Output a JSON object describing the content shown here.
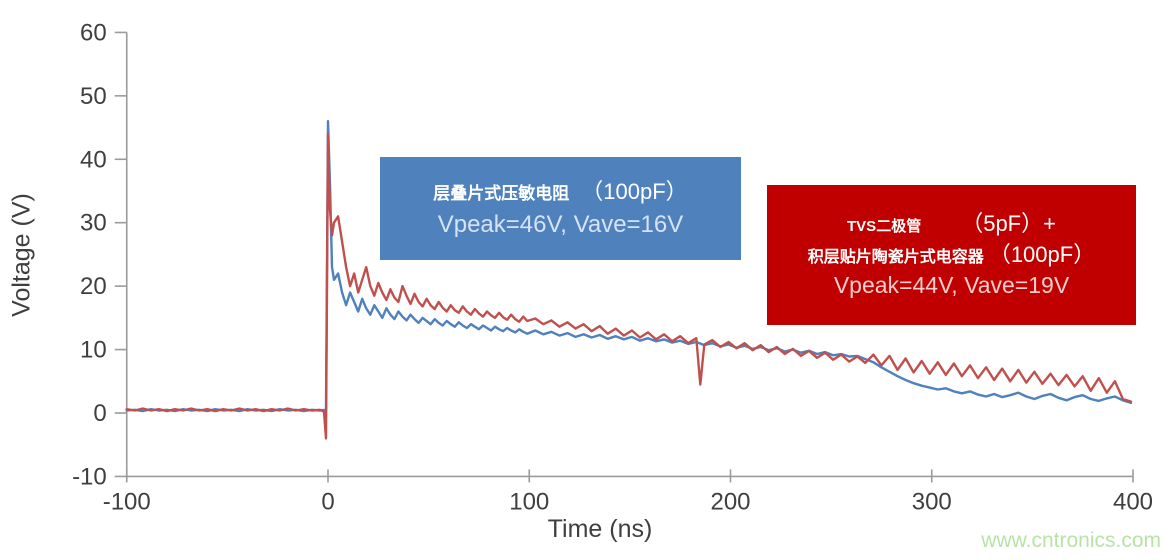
{
  "page": {
    "watermark": "www.cntronics.com"
  },
  "chart_data": {
    "type": "line",
    "title": "",
    "xlabel": "Time (ns)",
    "ylabel": "Voltage (V)",
    "xlim": [
      -100,
      400
    ],
    "ylim": [
      -10,
      60
    ],
    "x_ticks": [
      -100,
      0,
      100,
      200,
      300,
      400
    ],
    "y_ticks": [
      -10,
      0,
      10,
      20,
      30,
      40,
      50,
      60
    ],
    "grid": false,
    "legend_position": "none",
    "series": [
      {
        "id": "varistor",
        "name": "层叠片式压敏电阻（100pF）",
        "color": "#4f81bd",
        "vpeak_v": 46,
        "vave_v": 16,
        "points": [
          [
            -100,
            0.4
          ],
          [
            -96,
            0.5
          ],
          [
            -92,
            0.3
          ],
          [
            -88,
            0.6
          ],
          [
            -84,
            0.4
          ],
          [
            -80,
            0.5
          ],
          [
            -76,
            0.3
          ],
          [
            -72,
            0.6
          ],
          [
            -68,
            0.4
          ],
          [
            -64,
            0.5
          ],
          [
            -60,
            0.3
          ],
          [
            -56,
            0.6
          ],
          [
            -52,
            0.4
          ],
          [
            -48,
            0.5
          ],
          [
            -44,
            0.3
          ],
          [
            -40,
            0.6
          ],
          [
            -36,
            0.4
          ],
          [
            -32,
            0.5
          ],
          [
            -28,
            0.3
          ],
          [
            -24,
            0.6
          ],
          [
            -20,
            0.4
          ],
          [
            -16,
            0.5
          ],
          [
            -12,
            0.3
          ],
          [
            -8,
            0.5
          ],
          [
            -4,
            0.4
          ],
          [
            -1,
            0.5
          ],
          [
            0,
            46
          ],
          [
            1,
            36
          ],
          [
            2,
            23
          ],
          [
            3,
            21
          ],
          [
            5,
            22
          ],
          [
            7,
            19
          ],
          [
            9,
            17
          ],
          [
            11,
            19
          ],
          [
            13,
            17.5
          ],
          [
            15,
            16
          ],
          [
            17,
            18
          ],
          [
            19,
            16.5
          ],
          [
            21,
            15.5
          ],
          [
            23,
            17
          ],
          [
            25,
            16
          ],
          [
            27,
            15
          ],
          [
            29,
            16.5
          ],
          [
            31,
            15.5
          ],
          [
            33,
            14.8
          ],
          [
            35,
            16
          ],
          [
            37,
            15.2
          ],
          [
            39,
            14.6
          ],
          [
            41,
            15.5
          ],
          [
            43,
            14.8
          ],
          [
            45,
            14.2
          ],
          [
            47,
            15
          ],
          [
            49,
            14.5
          ],
          [
            51,
            14
          ],
          [
            53,
            14.8
          ],
          [
            55,
            14.2
          ],
          [
            57,
            13.8
          ],
          [
            59,
            14.5
          ],
          [
            61,
            14
          ],
          [
            63,
            13.6
          ],
          [
            65,
            14.3
          ],
          [
            67,
            13.8
          ],
          [
            69,
            13.4
          ],
          [
            71,
            14
          ],
          [
            73,
            13.6
          ],
          [
            75,
            13.2
          ],
          [
            77,
            13.8
          ],
          [
            79,
            13.4
          ],
          [
            81,
            13
          ],
          [
            83,
            13.6
          ],
          [
            85,
            13.2
          ],
          [
            87,
            12.9
          ],
          [
            89,
            13.4
          ],
          [
            91,
            13
          ],
          [
            93,
            12.7
          ],
          [
            95,
            13.2
          ],
          [
            97,
            12.8
          ],
          [
            99,
            12.5
          ],
          [
            103,
            13
          ],
          [
            107,
            12.4
          ],
          [
            111,
            12.8
          ],
          [
            115,
            12.2
          ],
          [
            119,
            12.6
          ],
          [
            123,
            12
          ],
          [
            127,
            12.4
          ],
          [
            131,
            11.9
          ],
          [
            135,
            12.3
          ],
          [
            139,
            11.7
          ],
          [
            143,
            12.1
          ],
          [
            147,
            11.6
          ],
          [
            151,
            12
          ],
          [
            155,
            11.4
          ],
          [
            159,
            11.8
          ],
          [
            163,
            11.3
          ],
          [
            167,
            11.6
          ],
          [
            171,
            11.1
          ],
          [
            175,
            11.4
          ],
          [
            179,
            10.9
          ],
          [
            183,
            11.2
          ],
          [
            187,
            10.7
          ],
          [
            191,
            11
          ],
          [
            195,
            10.5
          ],
          [
            199,
            10.8
          ],
          [
            203,
            10.3
          ],
          [
            207,
            10.6
          ],
          [
            211,
            10.1
          ],
          [
            215,
            10.4
          ],
          [
            219,
            9.9
          ],
          [
            223,
            10.2
          ],
          [
            227,
            9.7
          ],
          [
            231,
            10
          ],
          [
            235,
            9.5
          ],
          [
            239,
            9.8
          ],
          [
            243,
            9.3
          ],
          [
            247,
            9.6
          ],
          [
            251,
            9.1
          ],
          [
            255,
            9.3
          ],
          [
            259,
            8.9
          ],
          [
            263,
            9
          ],
          [
            267,
            8.5
          ],
          [
            271,
            8
          ],
          [
            275,
            7.2
          ],
          [
            279,
            6.5
          ],
          [
            283,
            5.8
          ],
          [
            287,
            5.2
          ],
          [
            291,
            4.7
          ],
          [
            295,
            4.3
          ],
          [
            299,
            4
          ],
          [
            303,
            3.7
          ],
          [
            307,
            3.9
          ],
          [
            311,
            3.4
          ],
          [
            315,
            3.1
          ],
          [
            319,
            3.4
          ],
          [
            323,
            2.9
          ],
          [
            327,
            2.6
          ],
          [
            331,
            3
          ],
          [
            335,
            2.5
          ],
          [
            339,
            2.8
          ],
          [
            343,
            3.2
          ],
          [
            347,
            2.6
          ],
          [
            351,
            2.2
          ],
          [
            355,
            2.7
          ],
          [
            359,
            3
          ],
          [
            363,
            2.4
          ],
          [
            367,
            2
          ],
          [
            371,
            2.5
          ],
          [
            375,
            2.8
          ],
          [
            379,
            2.2
          ],
          [
            383,
            1.9
          ],
          [
            387,
            2.3
          ],
          [
            391,
            2.6
          ],
          [
            395,
            2
          ],
          [
            399,
            1.6
          ]
        ]
      },
      {
        "id": "tvs-mlcc",
        "name": "TVS二极管（5pF）+ 积层贴片陶瓷片式电容器（100pF）",
        "color": "#c0504d",
        "vpeak_v": 44,
        "vave_v": 19,
        "points": [
          [
            -100,
            0.6
          ],
          [
            -96,
            0.4
          ],
          [
            -92,
            0.7
          ],
          [
            -88,
            0.4
          ],
          [
            -84,
            0.6
          ],
          [
            -80,
            0.3
          ],
          [
            -76,
            0.6
          ],
          [
            -72,
            0.4
          ],
          [
            -68,
            0.7
          ],
          [
            -64,
            0.4
          ],
          [
            -60,
            0.6
          ],
          [
            -56,
            0.3
          ],
          [
            -52,
            0.6
          ],
          [
            -48,
            0.4
          ],
          [
            -44,
            0.7
          ],
          [
            -40,
            0.4
          ],
          [
            -36,
            0.6
          ],
          [
            -32,
            0.3
          ],
          [
            -28,
            0.6
          ],
          [
            -24,
            0.4
          ],
          [
            -20,
            0.7
          ],
          [
            -16,
            0.4
          ],
          [
            -12,
            0.6
          ],
          [
            -8,
            0.4
          ],
          [
            -4,
            0.5
          ],
          [
            -2,
            0.2
          ],
          [
            -1,
            -4
          ],
          [
            0,
            44
          ],
          [
            1,
            32
          ],
          [
            2,
            28
          ],
          [
            3,
            30
          ],
          [
            5,
            31
          ],
          [
            7,
            27
          ],
          [
            9,
            23
          ],
          [
            11,
            20
          ],
          [
            13,
            22
          ],
          [
            15,
            19
          ],
          [
            17,
            21
          ],
          [
            19,
            23
          ],
          [
            21,
            20
          ],
          [
            23,
            18.5
          ],
          [
            25,
            20.5
          ],
          [
            27,
            19
          ],
          [
            29,
            17.8
          ],
          [
            31,
            19.5
          ],
          [
            33,
            18.2
          ],
          [
            35,
            17.5
          ],
          [
            37,
            20
          ],
          [
            39,
            18.5
          ],
          [
            41,
            17.2
          ],
          [
            43,
            18.8
          ],
          [
            45,
            17.5
          ],
          [
            47,
            16.8
          ],
          [
            49,
            18
          ],
          [
            51,
            17
          ],
          [
            53,
            16.4
          ],
          [
            55,
            17.5
          ],
          [
            57,
            16.6
          ],
          [
            59,
            16
          ],
          [
            61,
            17
          ],
          [
            63,
            16.2
          ],
          [
            65,
            15.8
          ],
          [
            67,
            16.8
          ],
          [
            69,
            16
          ],
          [
            71,
            15.5
          ],
          [
            73,
            16.4
          ],
          [
            75,
            15.7
          ],
          [
            77,
            15.2
          ],
          [
            79,
            16
          ],
          [
            81,
            15.4
          ],
          [
            83,
            15
          ],
          [
            85,
            15.8
          ],
          [
            87,
            15.1
          ],
          [
            89,
            14.7
          ],
          [
            91,
            15.5
          ],
          [
            93,
            14.8
          ],
          [
            95,
            14.4
          ],
          [
            97,
            15.2
          ],
          [
            99,
            14.5
          ],
          [
            103,
            14.9
          ],
          [
            107,
            14
          ],
          [
            111,
            14.6
          ],
          [
            115,
            13.6
          ],
          [
            119,
            14.3
          ],
          [
            123,
            13.3
          ],
          [
            127,
            14
          ],
          [
            131,
            12.9
          ],
          [
            135,
            13.7
          ],
          [
            139,
            12.5
          ],
          [
            143,
            13.3
          ],
          [
            147,
            12.2
          ],
          [
            151,
            13
          ],
          [
            155,
            11.9
          ],
          [
            159,
            12.7
          ],
          [
            163,
            11.6
          ],
          [
            167,
            12.4
          ],
          [
            171,
            11.3
          ],
          [
            175,
            12.1
          ],
          [
            179,
            11
          ],
          [
            183,
            11.8
          ],
          [
            185,
            4.5
          ],
          [
            187,
            10.8
          ],
          [
            191,
            11.5
          ],
          [
            195,
            10.4
          ],
          [
            199,
            11.2
          ],
          [
            203,
            10.2
          ],
          [
            207,
            11
          ],
          [
            211,
            9.9
          ],
          [
            215,
            10.7
          ],
          [
            219,
            9.6
          ],
          [
            223,
            10.4
          ],
          [
            227,
            9.3
          ],
          [
            231,
            10.1
          ],
          [
            235,
            9
          ],
          [
            239,
            9.8
          ],
          [
            243,
            8.7
          ],
          [
            247,
            9.5
          ],
          [
            251,
            8.4
          ],
          [
            255,
            9.2
          ],
          [
            259,
            8.1
          ],
          [
            263,
            8.9
          ],
          [
            267,
            7.9
          ],
          [
            271,
            9.2
          ],
          [
            275,
            7.5
          ],
          [
            279,
            9
          ],
          [
            283,
            6.8
          ],
          [
            287,
            8.6
          ],
          [
            291,
            6.4
          ],
          [
            295,
            8.2
          ],
          [
            299,
            6.2
          ],
          [
            303,
            8
          ],
          [
            307,
            6
          ],
          [
            311,
            7.8
          ],
          [
            315,
            5.8
          ],
          [
            319,
            7.5
          ],
          [
            323,
            5.5
          ],
          [
            327,
            7.2
          ],
          [
            331,
            5.2
          ],
          [
            335,
            7
          ],
          [
            339,
            5
          ],
          [
            343,
            6.8
          ],
          [
            347,
            4.8
          ],
          [
            351,
            6.5
          ],
          [
            355,
            4.6
          ],
          [
            359,
            6.2
          ],
          [
            363,
            4.4
          ],
          [
            367,
            6
          ],
          [
            371,
            4.2
          ],
          [
            375,
            5.8
          ],
          [
            379,
            3.5
          ],
          [
            383,
            5.5
          ],
          [
            387,
            3.2
          ],
          [
            391,
            5
          ],
          [
            395,
            2.2
          ],
          [
            399,
            1.8
          ]
        ]
      }
    ],
    "annotations": [
      {
        "id": "varistor-box",
        "bg": "#4f81bd",
        "line1_name": "层叠片式压敏电阻",
        "line1_cap": "（100pF）",
        "line2": "Vpeak=46V, Vave=16V"
      },
      {
        "id": "tvs-box",
        "bg": "#c00000",
        "line1_name": "TVS二极管",
        "line1_cap": "（5pF）+",
        "line2_name": "积层贴片陶瓷片式电容器",
        "line2_cap": "（100pF）",
        "line3": "Vpeak=44V, Vave=19V"
      }
    ]
  }
}
